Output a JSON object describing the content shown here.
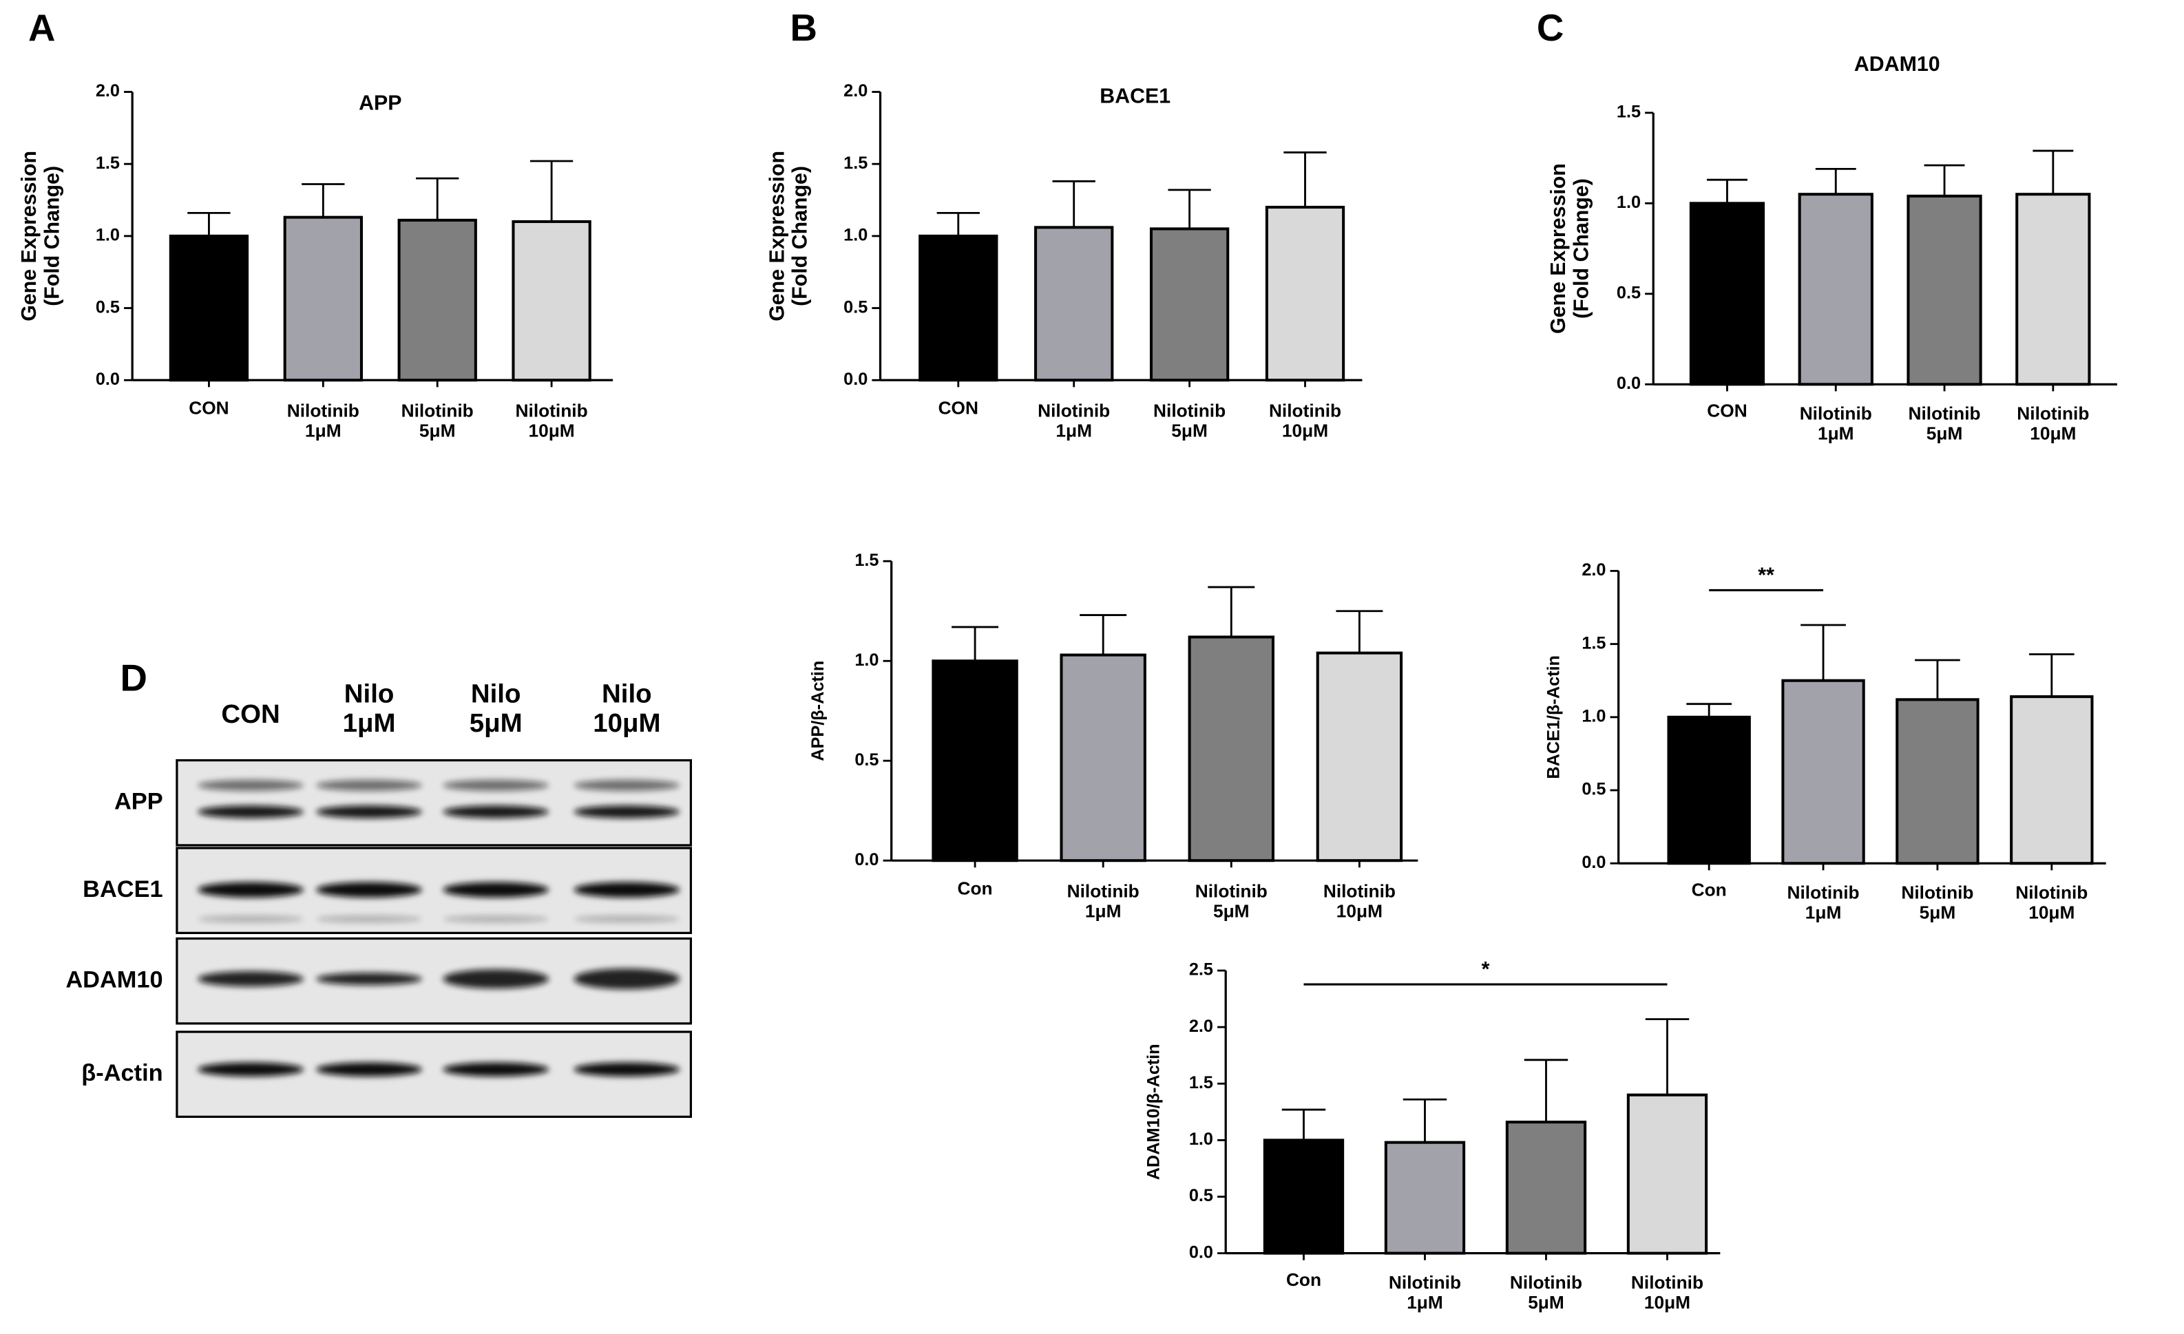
{
  "chart_data": [
    {
      "type": "bar",
      "panel": "A",
      "title": "APP",
      "ylabel": "Gene Expression\n(Fold Change)",
      "categories": [
        "CON",
        "Nilotinib\n1μM",
        "Nilotinib\n5μM",
        "Nilotinib\n10μM"
      ],
      "values": [
        1.0,
        1.13,
        1.11,
        1.1
      ],
      "errors": [
        0.16,
        0.23,
        0.29,
        0.42
      ],
      "colors": [
        "#000000",
        "#a2a2aa",
        "#7f7f7f",
        "#d9d9d9"
      ],
      "ylim": [
        0,
        2
      ],
      "yticks": [
        {
          "value": 0,
          "label": "0.0"
        },
        0.5,
        {
          "value": 1,
          "label": "1.0"
        },
        1.5,
        {
          "value": 2,
          "label": "2.0"
        }
      ]
    },
    {
      "type": "bar",
      "panel": "B",
      "title": "BACE1",
      "ylabel": "Gene Expression\n(Fold Change)",
      "categories": [
        "CON",
        "Nilotinib\n1μM",
        "Nilotinib\n5μM",
        "Nilotinib\n10μM"
      ],
      "values": [
        1.0,
        1.06,
        1.05,
        1.2
      ],
      "errors": [
        0.16,
        0.32,
        0.27,
        0.38
      ],
      "colors": [
        "#000000",
        "#a2a2aa",
        "#7f7f7f",
        "#d9d9d9"
      ],
      "ylim": [
        0,
        2
      ],
      "yticks": [
        {
          "value": 0,
          "label": "0.0"
        },
        0.5,
        {
          "value": 1,
          "label": "1.0"
        },
        1.5,
        {
          "value": 2,
          "label": "2.0"
        }
      ]
    },
    {
      "type": "bar",
      "panel": "C",
      "title": "ADAM10",
      "ylabel": "Gene Expression\n(Fold Change)",
      "categories": [
        "CON",
        "Nilotinib\n1μM",
        "Nilotinib\n5μM",
        "Nilotinib\n10μM"
      ],
      "values": [
        1.0,
        1.05,
        1.04,
        1.05
      ],
      "errors": [
        0.13,
        0.14,
        0.17,
        0.24
      ],
      "colors": [
        "#000000",
        "#a2a2aa",
        "#7f7f7f",
        "#d9d9d9"
      ],
      "ylim": [
        0,
        1.5
      ],
      "yticks": [
        {
          "value": 0,
          "label": "0.0"
        },
        0.5,
        {
          "value": 1,
          "label": "1.0"
        },
        1.5
      ]
    },
    {
      "type": "bar",
      "ylabel": "APP/β-Actin",
      "categories": [
        "Con",
        "Nilotinib\n1μM",
        "Nilotinib\n5μM",
        "Nilotinib\n10μM"
      ],
      "values": [
        1.0,
        1.03,
        1.12,
        1.04
      ],
      "errors": [
        0.17,
        0.2,
        0.25,
        0.21
      ],
      "colors": [
        "#000000",
        "#a2a2aa",
        "#7f7f7f",
        "#d9d9d9"
      ],
      "ylim": [
        0,
        1.5
      ],
      "yticks": [
        {
          "value": 0,
          "label": "0.0"
        },
        0.5,
        {
          "value": 1,
          "label": "1.0"
        },
        1.5
      ]
    },
    {
      "type": "bar",
      "ylabel": "BACE1/β-Actin",
      "categories": [
        "Con",
        "Nilotinib\n1μM",
        "Nilotinib\n5μM",
        "Nilotinib\n10μM"
      ],
      "values": [
        1.0,
        1.25,
        1.12,
        1.14
      ],
      "errors": [
        0.09,
        0.38,
        0.27,
        0.29
      ],
      "colors": [
        "#000000",
        "#a2a2aa",
        "#7f7f7f",
        "#d9d9d9"
      ],
      "ylim": [
        0,
        2
      ],
      "yticks": [
        {
          "value": 0,
          "label": "0.0"
        },
        0.5,
        {
          "value": 1,
          "label": "1.0"
        },
        1.5,
        {
          "value": 2,
          "label": "2.0"
        }
      ],
      "significance": [
        {
          "label": "**",
          "between": [
            0,
            1
          ]
        }
      ]
    },
    {
      "type": "bar",
      "ylabel": "ADAM10/β-Actin",
      "categories": [
        "Con",
        "Nilotinib\n1μM",
        "Nilotinib\n5μM",
        "Nilotinib\n10μM"
      ],
      "values": [
        1.0,
        0.98,
        1.16,
        1.4
      ],
      "errors": [
        0.27,
        0.38,
        0.55,
        0.67
      ],
      "colors": [
        "#000000",
        "#a2a2aa",
        "#7f7f7f",
        "#d9d9d9"
      ],
      "ylim": [
        0,
        2.5
      ],
      "yticks": [
        {
          "value": 0,
          "label": "0.0"
        },
        0.5,
        {
          "value": 1,
          "label": "1.0"
        },
        1.5,
        {
          "value": 2,
          "label": "2.0"
        },
        2.5
      ],
      "significance": [
        {
          "label": "*",
          "between": [
            0,
            3
          ]
        }
      ]
    }
  ],
  "blot": {
    "panel": "D",
    "lanes": [
      "CON",
      "Nilo\n1μM",
      "Nilo\n5μM",
      "Nilo\n10μM"
    ],
    "rows": [
      "APP",
      "BACE1",
      "ADAM10",
      "β-Actin"
    ]
  }
}
